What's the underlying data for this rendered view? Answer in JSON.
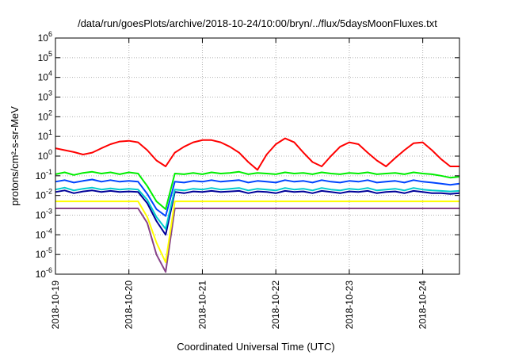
{
  "chart_data": {
    "type": "line",
    "title": "/data/run/goesPlots/archive/2018-10-24/10:00/bryn/../flux/5daysMoonFluxes.txt",
    "xlabel": "Coordinated Universal Time (UTC)",
    "ylabel": "protons/cm²-s-sr-MeV",
    "yscale": "log",
    "grid": true,
    "x_tick_labels": [
      "2018-10-19",
      "2018-10-20",
      "2018-10-21",
      "2018-10-22",
      "2018-10-23",
      "2018-10-24"
    ],
    "xlim": [
      "2018-10-19T00:00",
      "2018-10-24T12:00"
    ],
    "y_tick_exponents": [
      -6,
      -5,
      -4,
      -3,
      -2,
      -1,
      0,
      1,
      2,
      3,
      4,
      5,
      6
    ],
    "ylim": [
      1e-06,
      1000000.0
    ],
    "x": [
      "2018-10-19T00:00",
      "2018-10-19T03:00",
      "2018-10-19T06:00",
      "2018-10-19T09:00",
      "2018-10-19T12:00",
      "2018-10-19T15:00",
      "2018-10-19T18:00",
      "2018-10-19T21:00",
      "2018-10-20T00:00",
      "2018-10-20T03:00",
      "2018-10-20T06:00",
      "2018-10-20T09:00",
      "2018-10-20T12:00",
      "2018-10-20T15:00",
      "2018-10-20T18:00",
      "2018-10-20T21:00",
      "2018-10-21T00:00",
      "2018-10-21T03:00",
      "2018-10-21T06:00",
      "2018-10-21T09:00",
      "2018-10-21T12:00",
      "2018-10-21T15:00",
      "2018-10-21T18:00",
      "2018-10-21T21:00",
      "2018-10-22T00:00",
      "2018-10-22T03:00",
      "2018-10-22T06:00",
      "2018-10-22T09:00",
      "2018-10-22T12:00",
      "2018-10-22T15:00",
      "2018-10-22T18:00",
      "2018-10-22T21:00",
      "2018-10-23T00:00",
      "2018-10-23T03:00",
      "2018-10-23T06:00",
      "2018-10-23T09:00",
      "2018-10-23T12:00",
      "2018-10-23T15:00",
      "2018-10-23T18:00",
      "2018-10-23T21:00",
      "2018-10-24T00:00",
      "2018-10-24T03:00",
      "2018-10-24T06:00",
      "2018-10-24T09:00",
      "2018-10-24T12:00"
    ],
    "series": [
      {
        "color": "#ff0000",
        "values": [
          2.5,
          2.0,
          1.6,
          1.2,
          1.5,
          2.5,
          4.0,
          5.5,
          6.0,
          5.0,
          2.0,
          0.6,
          0.3,
          1.5,
          3.0,
          5.0,
          6.5,
          6.5,
          5.0,
          3.0,
          1.5,
          0.5,
          0.2,
          1.2,
          4.0,
          8.0,
          5.0,
          1.5,
          0.5,
          0.3,
          1.0,
          3.0,
          5.0,
          4.0,
          1.5,
          0.6,
          0.3,
          0.8,
          2.0,
          4.5,
          5.0,
          2.0,
          0.7,
          0.3,
          0.3
        ]
      },
      {
        "color": "#00ee00",
        "values": [
          0.12,
          0.15,
          0.11,
          0.14,
          0.16,
          0.13,
          0.15,
          0.12,
          0.15,
          0.13,
          0.03,
          0.005,
          0.002,
          0.13,
          0.12,
          0.14,
          0.12,
          0.15,
          0.13,
          0.14,
          0.16,
          0.12,
          0.14,
          0.13,
          0.12,
          0.15,
          0.13,
          0.14,
          0.12,
          0.15,
          0.13,
          0.12,
          0.14,
          0.13,
          0.15,
          0.12,
          0.13,
          0.14,
          0.12,
          0.15,
          0.13,
          0.12,
          0.1,
          0.08,
          0.09
        ]
      },
      {
        "color": "#0044ff",
        "values": [
          0.05,
          0.06,
          0.045,
          0.055,
          0.065,
          0.05,
          0.06,
          0.05,
          0.055,
          0.05,
          0.012,
          0.002,
          0.0009,
          0.05,
          0.045,
          0.055,
          0.05,
          0.06,
          0.05,
          0.055,
          0.06,
          0.045,
          0.055,
          0.05,
          0.045,
          0.06,
          0.05,
          0.055,
          0.045,
          0.06,
          0.05,
          0.045,
          0.055,
          0.05,
          0.06,
          0.045,
          0.05,
          0.055,
          0.045,
          0.06,
          0.05,
          0.045,
          0.04,
          0.035,
          0.04
        ]
      },
      {
        "color": "#00cccc",
        "values": [
          0.02,
          0.025,
          0.018,
          0.022,
          0.025,
          0.02,
          0.023,
          0.02,
          0.022,
          0.02,
          0.006,
          0.0008,
          0.0002,
          0.02,
          0.018,
          0.022,
          0.02,
          0.024,
          0.02,
          0.022,
          0.024,
          0.018,
          0.022,
          0.02,
          0.018,
          0.024,
          0.02,
          0.022,
          0.018,
          0.024,
          0.02,
          0.018,
          0.022,
          0.02,
          0.024,
          0.018,
          0.02,
          0.022,
          0.018,
          0.024,
          0.02,
          0.018,
          0.017,
          0.016,
          0.017
        ]
      },
      {
        "color": "#000099",
        "values": [
          0.015,
          0.018,
          0.013,
          0.016,
          0.018,
          0.015,
          0.017,
          0.015,
          0.016,
          0.015,
          0.004,
          0.0005,
          0.0001,
          0.015,
          0.013,
          0.016,
          0.015,
          0.017,
          0.015,
          0.016,
          0.017,
          0.013,
          0.016,
          0.015,
          0.013,
          0.017,
          0.015,
          0.016,
          0.013,
          0.017,
          0.015,
          0.013,
          0.016,
          0.015,
          0.017,
          0.013,
          0.015,
          0.016,
          0.013,
          0.017,
          0.015,
          0.013,
          0.013,
          0.012,
          0.013
        ]
      },
      {
        "color": "#ffff00",
        "values": [
          0.005,
          0.005,
          0.005,
          0.005,
          0.005,
          0.005,
          0.005,
          0.005,
          0.005,
          0.005,
          0.0008,
          4e-05,
          4e-06,
          0.005,
          0.005,
          0.005,
          0.005,
          0.005,
          0.005,
          0.005,
          0.005,
          0.005,
          0.005,
          0.005,
          0.005,
          0.005,
          0.005,
          0.005,
          0.005,
          0.005,
          0.005,
          0.005,
          0.005,
          0.005,
          0.005,
          0.005,
          0.005,
          0.005,
          0.005,
          0.005,
          0.005,
          0.005,
          0.005,
          0.005,
          0.005
        ]
      },
      {
        "color": "#884488",
        "values": [
          0.0022,
          0.0022,
          0.0022,
          0.0022,
          0.0022,
          0.0022,
          0.0022,
          0.0022,
          0.0022,
          0.0022,
          0.0004,
          1e-05,
          1.3e-06,
          0.0022,
          0.0022,
          0.0022,
          0.0022,
          0.0022,
          0.0022,
          0.0022,
          0.0022,
          0.0022,
          0.0022,
          0.0022,
          0.0022,
          0.0022,
          0.0022,
          0.0022,
          0.0022,
          0.0022,
          0.0022,
          0.0022,
          0.0022,
          0.0022,
          0.0022,
          0.0022,
          0.0022,
          0.0022,
          0.0022,
          0.0022,
          0.0022,
          0.0022,
          0.0022,
          0.0022,
          0.0022
        ]
      }
    ]
  }
}
